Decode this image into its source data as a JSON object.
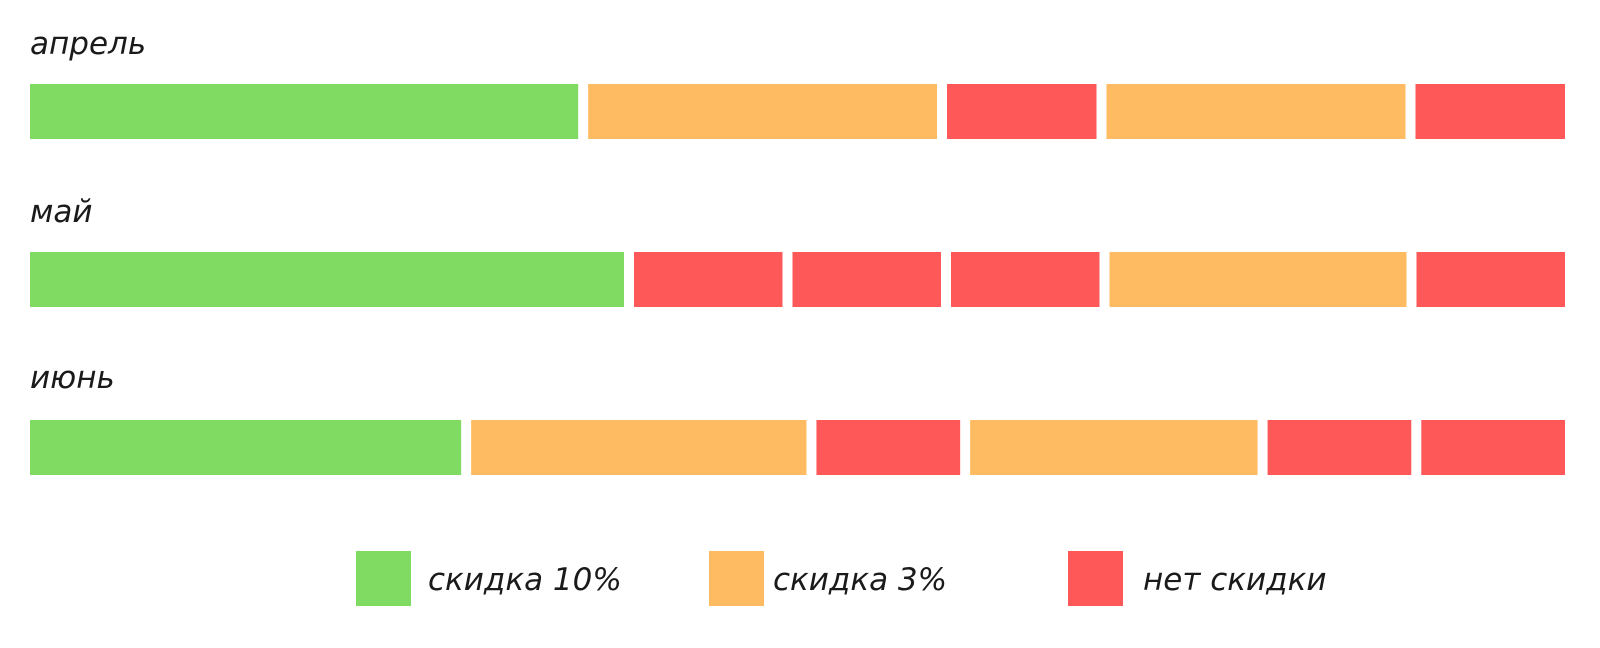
{
  "chart_data": {
    "type": "bar",
    "orientation": "horizontal",
    "stacked": true,
    "categories": [
      "апрель",
      "май",
      "июнь"
    ],
    "rows": [
      {
        "label": "апрель",
        "segments": [
          {
            "value": 11,
            "series": "skidka10"
          },
          {
            "value": 7,
            "series": "skidka3"
          },
          {
            "value": 3,
            "series": "net"
          },
          {
            "value": 6,
            "series": "skidka3"
          },
          {
            "value": 3,
            "series": "net"
          }
        ]
      },
      {
        "label": "май",
        "segments": [
          {
            "value": 12,
            "series": "skidka10"
          },
          {
            "value": 3,
            "series": "net"
          },
          {
            "value": 3,
            "series": "net"
          },
          {
            "value": 3,
            "series": "net"
          },
          {
            "value": 6,
            "series": "skidka3"
          },
          {
            "value": 3,
            "series": "net"
          }
        ]
      },
      {
        "label": "июнь",
        "segments": [
          {
            "value": 9,
            "series": "skidka10"
          },
          {
            "value": 7,
            "series": "skidka3"
          },
          {
            "value": 3,
            "series": "net"
          },
          {
            "value": 6,
            "series": "skidka3"
          },
          {
            "value": 3,
            "series": "net"
          },
          {
            "value": 3,
            "series": "net"
          }
        ]
      }
    ],
    "series": [
      {
        "key": "skidka10",
        "name": "скидка 10%",
        "color": "#80db63"
      },
      {
        "key": "skidka3",
        "name": "скидка 3%",
        "color": "#ffbb61"
      },
      {
        "key": "net",
        "name": "нет скидки",
        "color": "#ff5858"
      }
    ],
    "legend_position": "bottom",
    "grid": false
  }
}
